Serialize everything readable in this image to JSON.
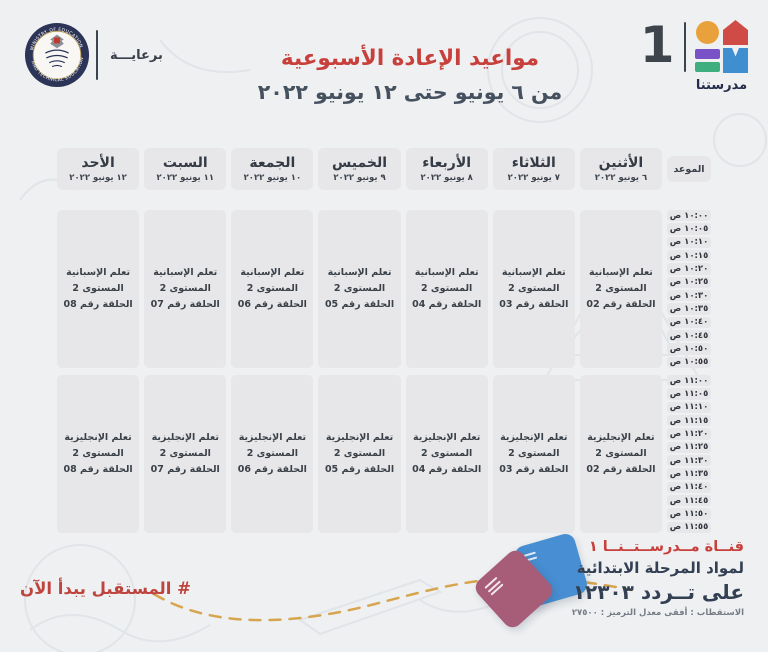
{
  "header": {
    "sponsor_label": "برعايـــة",
    "seal": {
      "top_text": "MINISTRY OF EDUCATION",
      "bottom_text": "AND TECHNICAL EDUCATION"
    },
    "title": "مواعيد الإعادة الأسبوعية",
    "subtitle": "من ٦ يونيو حتى ١٢ يونيو ٢٠٢٢",
    "channel_number": "1",
    "channel_name": "مدرستنا"
  },
  "table": {
    "time_header": "الموعد",
    "days": [
      {
        "name": "الأثنين",
        "date": "٦ يونيو ٢٠٢٢"
      },
      {
        "name": "الثلاثاء",
        "date": "٧ يونيو ٢٠٢٢"
      },
      {
        "name": "الأربعاء",
        "date": "٨ يونيو ٢٠٢٢"
      },
      {
        "name": "الخميس",
        "date": "٩ يونيو ٢٠٢٢"
      },
      {
        "name": "الجمعة",
        "date": "١٠ يونيو ٢٠٢٢"
      },
      {
        "name": "السبت",
        "date": "١١ يونيو ٢٠٢٢"
      },
      {
        "name": "الأحد",
        "date": "١٢ يونيو ٢٠٢٢"
      }
    ],
    "blocks": [
      {
        "times": [
          "١٠:٠٠ ص",
          "١٠:٠٥ ص",
          "١٠:١٠ ص",
          "١٠:١٥ ص",
          "١٠:٢٠ ص",
          "١٠:٢٥ ص",
          "١٠:٣٠ ص",
          "١٠:٣٥ ص",
          "١٠:٤٠ ص",
          "١٠:٤٥ ص",
          "١٠:٥٠ ص",
          "١٠:٥٥ ص"
        ],
        "programs": [
          {
            "title": "تعلم الإسبانية",
            "level": "المستوى 2",
            "episode": "الحلقة رقم 02"
          },
          {
            "title": "تعلم الإسبانية",
            "level": "المستوى 2",
            "episode": "الحلقة رقم 03"
          },
          {
            "title": "تعلم الإسبانية",
            "level": "المستوى 2",
            "episode": "الحلقة رقم 04"
          },
          {
            "title": "تعلم الإسبانية",
            "level": "المستوى 2",
            "episode": "الحلقة رقم 05"
          },
          {
            "title": "تعلم الإسبانية",
            "level": "المستوى 2",
            "episode": "الحلقة رقم 06"
          },
          {
            "title": "تعلم الإسبانية",
            "level": "المستوى 2",
            "episode": "الحلقة رقم 07"
          },
          {
            "title": "تعلم الإسبانية",
            "level": "المستوى 2",
            "episode": "الحلقة رقم 08"
          }
        ]
      },
      {
        "times": [
          "١١:٠٠ ص",
          "١١:٠٥ ص",
          "١١:١٠ ص",
          "١١:١٥ ص",
          "١١:٢٠ ص",
          "١١:٢٥ ص",
          "١١:٣٠ ص",
          "١١:٣٥ ص",
          "١١:٤٠ ص",
          "١١:٤٥ ص",
          "١١:٥٠ ص",
          "١١:٥٥ ص"
        ],
        "programs": [
          {
            "title": "تعلم الإنجليزية",
            "level": "المستوى 2",
            "episode": "الحلقة رقم 02"
          },
          {
            "title": "تعلم الإنجليزية",
            "level": "المستوى 2",
            "episode": "الحلقة رقم 03"
          },
          {
            "title": "تعلم الإنجليزية",
            "level": "المستوى 2",
            "episode": "الحلقة رقم 04"
          },
          {
            "title": "تعلم الإنجليزية",
            "level": "المستوى 2",
            "episode": "الحلقة رقم 05"
          },
          {
            "title": "تعلم الإنجليزية",
            "level": "المستوى 2",
            "episode": "الحلقة رقم 06"
          },
          {
            "title": "تعلم الإنجليزية",
            "level": "المستوى 2",
            "episode": "الحلقة رقم 07"
          },
          {
            "title": "تعلم الإنجليزية",
            "level": "المستوى 2",
            "episode": "الحلقة رقم 08"
          }
        ]
      }
    ]
  },
  "footer": {
    "hashtag": "# المستقبل يبدأ الآن",
    "channel_line1": "قنــاة مــدرســتــنــا ١",
    "channel_line2": "لمواد المرحلة الابتدائية",
    "channel_line3": "على تــردد ١٢٣٠٣",
    "tech_info": "الاستقطاب : أفقى   معدل الترميز : ٢٧٥٠٠"
  },
  "colors": {
    "bg": "#eef0f2",
    "cell": "#e7e7e9",
    "red": "#c8403c",
    "navy": "#2c3557",
    "dash_gold": "#d7a54e",
    "book_blue": "#478fd2",
    "book_plum": "#a75c77",
    "logo_orange": "#e9a23b",
    "logo_red": "#d14b46",
    "logo_purple": "#7a52c7",
    "logo_green": "#3fae7e",
    "logo_blue": "#3e8ed0"
  }
}
